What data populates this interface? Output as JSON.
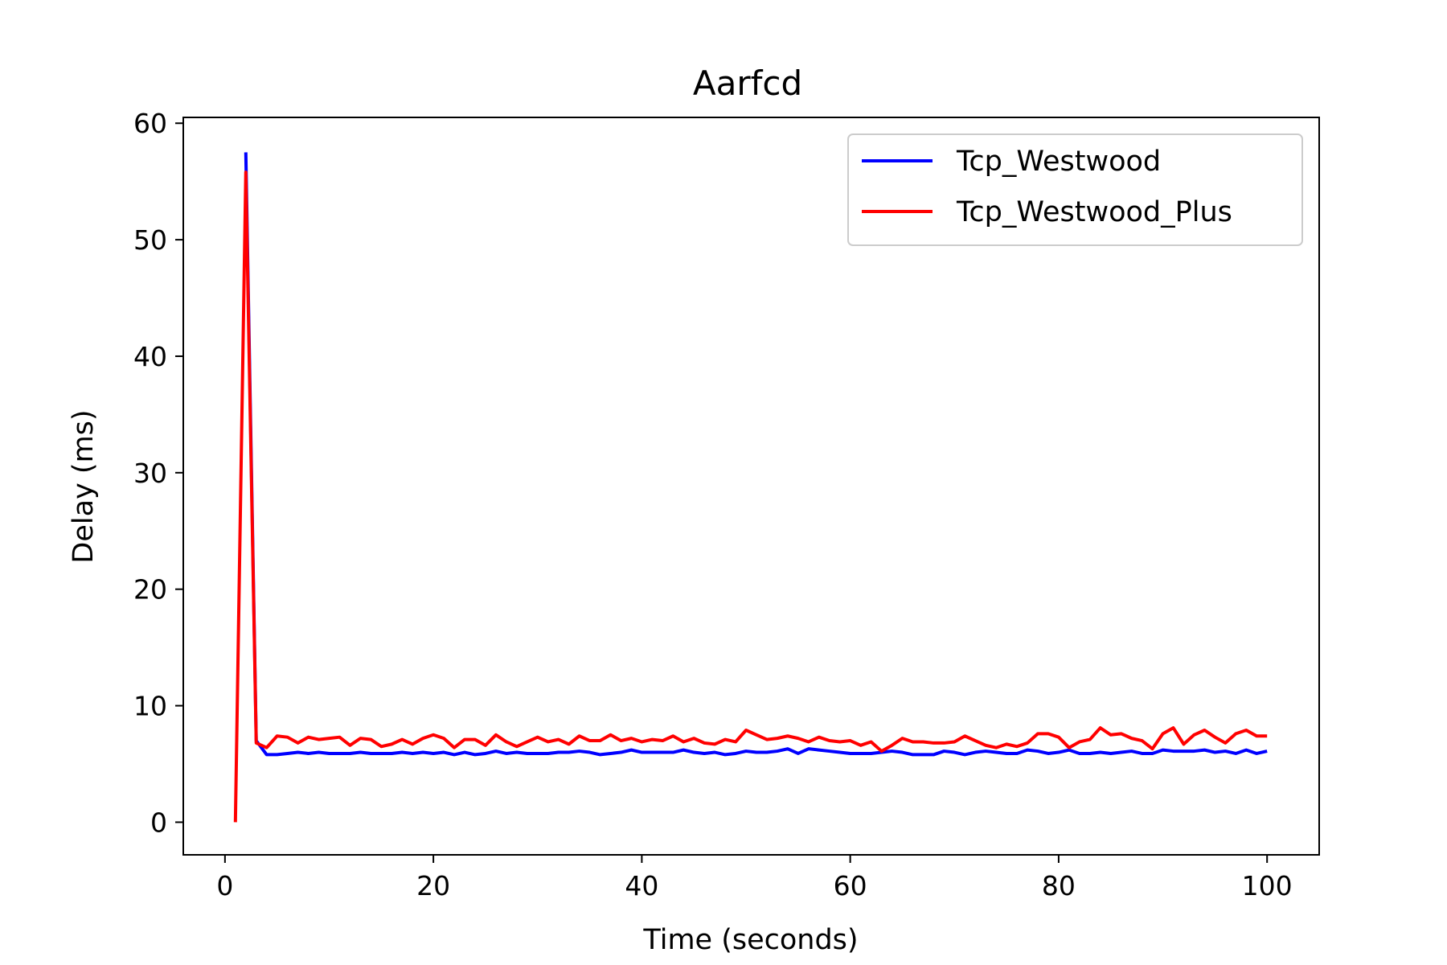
{
  "chart_data": {
    "type": "line",
    "title": "Aarfcd",
    "xlabel": "Time (seconds)",
    "ylabel": "Delay (ms)",
    "xlim": [
      -4,
      105
    ],
    "ylim": [
      -2.8,
      60.5
    ],
    "xticks": [
      0,
      20,
      40,
      60,
      80,
      100
    ],
    "yticks": [
      0,
      10,
      20,
      30,
      40,
      50,
      60
    ],
    "grid": false,
    "legend_position": "top-right",
    "series": [
      {
        "name": "Tcp_Westwood",
        "color": "#0000ff",
        "x": [
          2,
          3,
          4,
          5,
          6,
          7,
          8,
          9,
          10,
          11,
          12,
          13,
          14,
          15,
          16,
          17,
          18,
          19,
          20,
          21,
          22,
          23,
          24,
          25,
          26,
          27,
          28,
          29,
          30,
          31,
          32,
          33,
          34,
          35,
          36,
          37,
          38,
          39,
          40,
          41,
          42,
          43,
          44,
          45,
          46,
          47,
          48,
          49,
          50,
          51,
          52,
          53,
          54,
          55,
          56,
          57,
          58,
          59,
          60,
          61,
          62,
          63,
          64,
          65,
          66,
          67,
          68,
          69,
          70,
          71,
          72,
          73,
          74,
          75,
          76,
          77,
          78,
          79,
          80,
          81,
          82,
          83,
          84,
          85,
          86,
          87,
          88,
          89,
          90,
          91,
          92,
          93,
          94,
          95,
          96,
          97,
          98,
          99,
          100
        ],
        "y": [
          57.5,
          7.0,
          5.8,
          5.8,
          5.9,
          6.0,
          5.9,
          6.0,
          5.9,
          5.9,
          5.9,
          6.0,
          5.9,
          5.9,
          5.9,
          6.0,
          5.9,
          6.0,
          5.9,
          6.0,
          5.8,
          6.0,
          5.8,
          5.9,
          6.1,
          5.9,
          6.0,
          5.9,
          5.9,
          5.9,
          6.0,
          6.0,
          6.1,
          6.0,
          5.8,
          5.9,
          6.0,
          6.2,
          6.0,
          6.0,
          6.0,
          6.0,
          6.2,
          6.0,
          5.9,
          6.0,
          5.8,
          5.9,
          6.1,
          6.0,
          6.0,
          6.1,
          6.3,
          5.9,
          6.3,
          6.2,
          6.1,
          6.0,
          5.9,
          5.9,
          5.9,
          6.0,
          6.1,
          6.0,
          5.8,
          5.8,
          5.8,
          6.1,
          6.0,
          5.8,
          6.0,
          6.1,
          6.0,
          5.9,
          5.9,
          6.2,
          6.1,
          5.9,
          6.0,
          6.2,
          5.9,
          5.9,
          6.0,
          5.9,
          6.0,
          6.1,
          5.9,
          5.9,
          6.2,
          6.1,
          6.1,
          6.1,
          6.2,
          6.0,
          6.1,
          5.9,
          6.2,
          5.9,
          6.1
        ]
      },
      {
        "name": "Tcp_Westwood_Plus",
        "color": "#ff0000",
        "x": [
          1,
          2,
          3,
          4,
          5,
          6,
          7,
          8,
          9,
          10,
          11,
          12,
          13,
          14,
          15,
          16,
          17,
          18,
          19,
          20,
          21,
          22,
          23,
          24,
          25,
          26,
          27,
          28,
          29,
          30,
          31,
          32,
          33,
          34,
          35,
          36,
          37,
          38,
          39,
          40,
          41,
          42,
          43,
          44,
          45,
          46,
          47,
          48,
          49,
          50,
          51,
          52,
          53,
          54,
          55,
          56,
          57,
          58,
          59,
          60,
          61,
          62,
          63,
          64,
          65,
          66,
          67,
          68,
          69,
          70,
          71,
          72,
          73,
          74,
          75,
          76,
          77,
          78,
          79,
          80,
          81,
          82,
          83,
          84,
          85,
          86,
          87,
          88,
          89,
          90,
          91,
          92,
          93,
          94,
          95,
          96,
          97,
          98,
          99,
          100
        ],
        "y": [
          0,
          55.8,
          6.8,
          6.4,
          7.4,
          7.3,
          6.8,
          7.3,
          7.1,
          7.2,
          7.3,
          6.6,
          7.2,
          7.1,
          6.5,
          6.7,
          7.1,
          6.7,
          7.2,
          7.5,
          7.2,
          6.4,
          7.1,
          7.1,
          6.6,
          7.5,
          6.9,
          6.5,
          6.9,
          7.3,
          6.9,
          7.1,
          6.7,
          7.4,
          7.0,
          7.0,
          7.5,
          7.0,
          7.2,
          6.9,
          7.1,
          7.0,
          7.4,
          6.9,
          7.2,
          6.8,
          6.7,
          7.1,
          6.9,
          7.9,
          7.5,
          7.1,
          7.2,
          7.4,
          7.2,
          6.9,
          7.3,
          7.0,
          6.9,
          7.0,
          6.6,
          6.9,
          6.1,
          6.6,
          7.2,
          6.9,
          6.9,
          6.8,
          6.8,
          6.9,
          7.4,
          7.0,
          6.6,
          6.4,
          6.7,
          6.5,
          6.8,
          7.6,
          7.6,
          7.3,
          6.4,
          6.9,
          7.1,
          8.1,
          7.5,
          7.6,
          7.2,
          7.0,
          6.3,
          7.6,
          8.1,
          6.7,
          7.5,
          7.9,
          7.3,
          6.8,
          7.6,
          7.9,
          7.4,
          7.4
        ]
      }
    ]
  }
}
